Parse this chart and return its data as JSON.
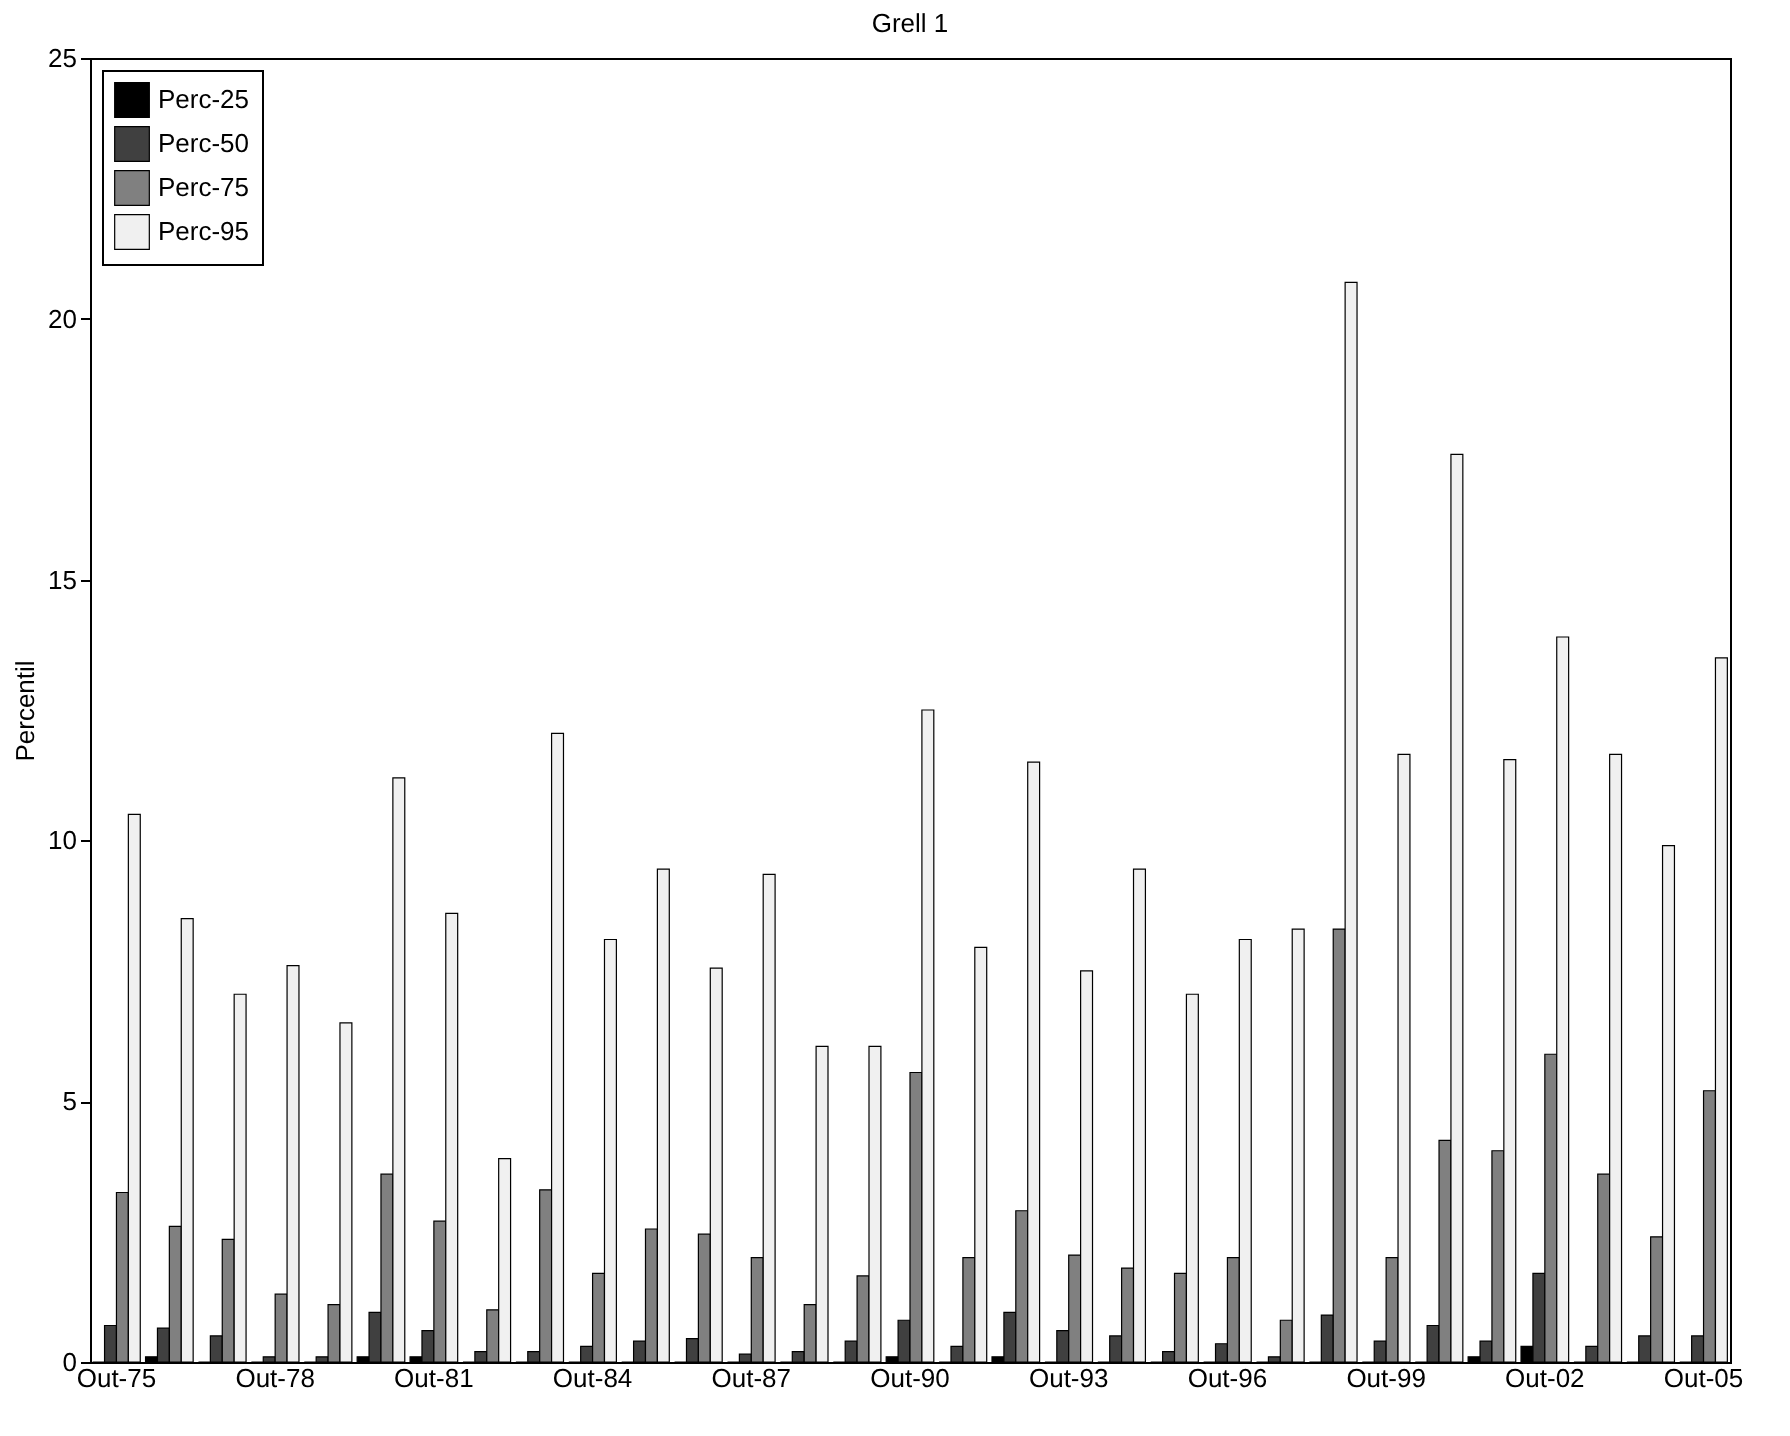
{
  "chart_data": {
    "type": "bar",
    "title": "Grell 1",
    "ylabel": "Percentil",
    "categories": [
      "Out-75",
      null,
      null,
      "Out-78",
      null,
      null,
      "Out-81",
      null,
      null,
      "Out-84",
      null,
      null,
      "Out-87",
      null,
      null,
      "Out-90",
      null,
      null,
      "Out-93",
      null,
      null,
      "Out-96",
      null,
      null,
      "Out-99",
      null,
      null,
      "Out-02",
      null,
      null,
      "Out-05"
    ],
    "series": [
      {
        "name": "Perc-25",
        "color": "#000000",
        "values": [
          0,
          0.1,
          0,
          0,
          0,
          0.1,
          0.1,
          0,
          0,
          0,
          0,
          0,
          0,
          0,
          0,
          0.1,
          0,
          0.1,
          0,
          0,
          0,
          0,
          0,
          0,
          0,
          0,
          0.1,
          0.3,
          0,
          0,
          0
        ]
      },
      {
        "name": "Perc-50",
        "color": "#404040",
        "values": [
          0.7,
          0.65,
          0.5,
          0.1,
          0.1,
          0.95,
          0.6,
          0.2,
          0.2,
          0.3,
          0.4,
          0.45,
          0.15,
          0.2,
          0.4,
          0.8,
          0.3,
          0.95,
          0.6,
          0.5,
          0.2,
          0.35,
          0.1,
          0.9,
          0.4,
          0.7,
          0.4,
          1.7,
          0.3,
          0.5,
          0.5
        ]
      },
      {
        "name": "Perc-75",
        "color": "#808080",
        "values": [
          3.25,
          2.6,
          2.35,
          1.3,
          1.1,
          3.6,
          2.7,
          1.0,
          3.3,
          1.7,
          2.55,
          2.45,
          2.0,
          1.1,
          1.65,
          5.55,
          2.0,
          2.9,
          2.05,
          1.8,
          1.7,
          2.0,
          0.8,
          8.3,
          2.0,
          4.25,
          4.05,
          5.9,
          3.6,
          2.4,
          5.2
        ]
      },
      {
        "name": "Perc-95",
        "color": "#f0f0f0",
        "values": [
          10.5,
          8.5,
          7.05,
          7.6,
          6.5,
          11.2,
          8.6,
          3.9,
          12.05,
          8.1,
          9.45,
          7.55,
          9.35,
          6.05,
          6.05,
          12.5,
          7.95,
          11.5,
          7.5,
          9.45,
          7.05,
          8.1,
          8.3,
          20.7,
          11.65,
          17.4,
          11.55,
          13.9,
          11.65,
          9.9,
          13.5
        ]
      }
    ],
    "ylim": [
      0,
      25
    ],
    "yticks": [
      0,
      5,
      10,
      15,
      20,
      25
    ],
    "legend": "top left"
  }
}
